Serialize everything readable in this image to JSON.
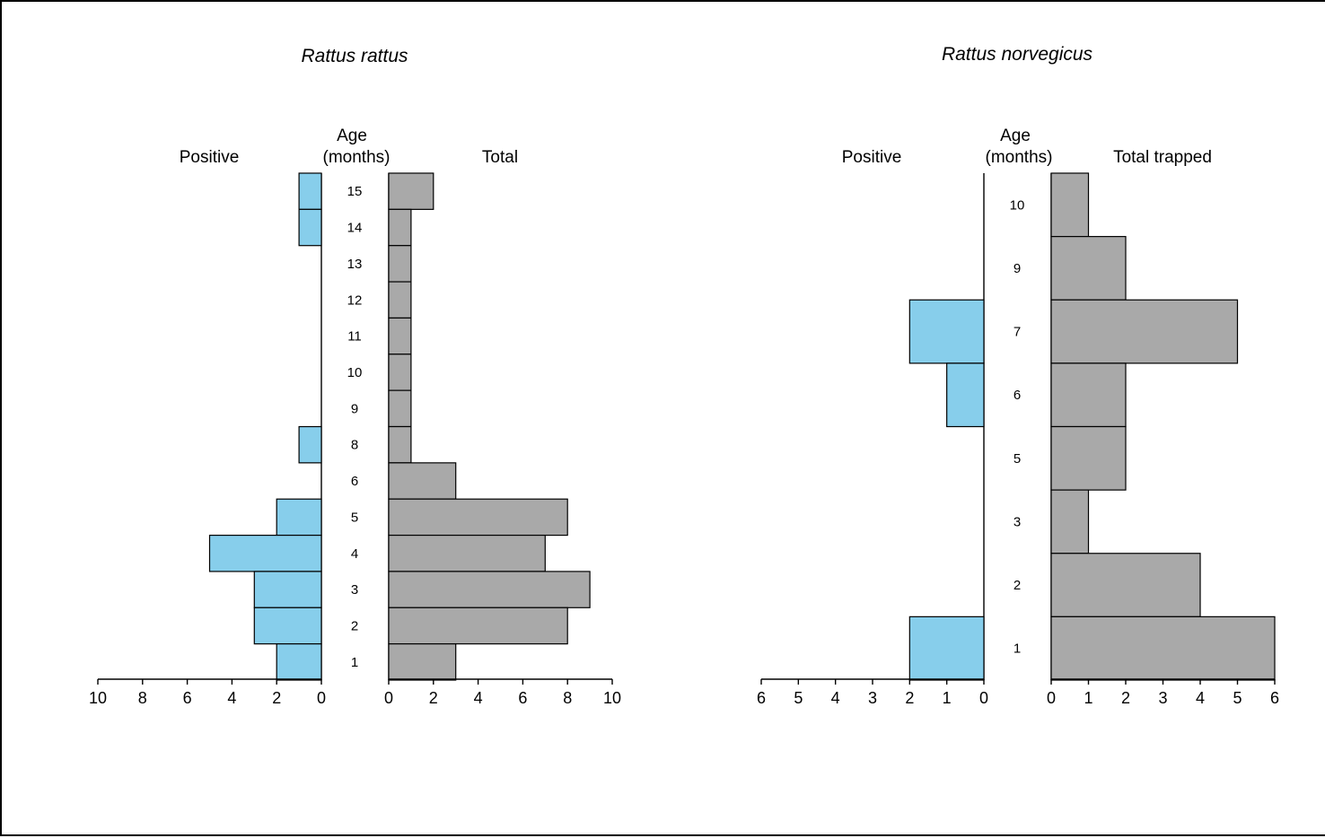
{
  "colors": {
    "positive": "#87ceeb",
    "total": "#a9a9a9"
  },
  "chart_data": [
    {
      "type": "bar",
      "title": "Rattus rattus",
      "age_label_line1": "Age",
      "age_label_line2": "(months)",
      "left_label": "Positive",
      "right_label": "Total",
      "categories": [
        "15",
        "14",
        "13",
        "12",
        "11",
        "10",
        "9",
        "8",
        "6",
        "5",
        "4",
        "3",
        "2",
        "1"
      ],
      "series": [
        {
          "name": "Positive",
          "values": [
            1,
            1,
            0,
            0,
            0,
            0,
            0,
            1,
            0,
            2,
            5,
            3,
            3,
            2
          ]
        },
        {
          "name": "Total",
          "values": [
            2,
            1,
            1,
            1,
            1,
            1,
            1,
            1,
            3,
            8,
            7,
            9,
            8,
            3
          ]
        }
      ],
      "left_ticks": [
        "10",
        "8",
        "6",
        "4",
        "2",
        "0"
      ],
      "right_ticks": [
        "0",
        "2",
        "4",
        "6",
        "8",
        "10"
      ],
      "left_xlim": [
        0,
        10
      ],
      "right_xlim": [
        0,
        10
      ]
    },
    {
      "type": "bar",
      "title": "Rattus norvegicus",
      "age_label_line1": "Age",
      "age_label_line2": "(months)",
      "left_label": "Positive",
      "right_label": "Total trapped",
      "categories": [
        "10",
        "9",
        "7",
        "6",
        "5",
        "3",
        "2",
        "1"
      ],
      "series": [
        {
          "name": "Positive",
          "values": [
            0,
            0,
            2,
            1,
            0,
            0,
            0,
            2
          ]
        },
        {
          "name": "Total trapped",
          "values": [
            1,
            2,
            5,
            2,
            2,
            1,
            4,
            6
          ]
        }
      ],
      "left_ticks": [
        "6",
        "5",
        "4",
        "3",
        "2",
        "1",
        "0"
      ],
      "right_ticks": [
        "0",
        "1",
        "2",
        "3",
        "4",
        "5",
        "6"
      ],
      "left_xlim": [
        0,
        6
      ],
      "right_xlim": [
        0,
        6
      ]
    }
  ]
}
